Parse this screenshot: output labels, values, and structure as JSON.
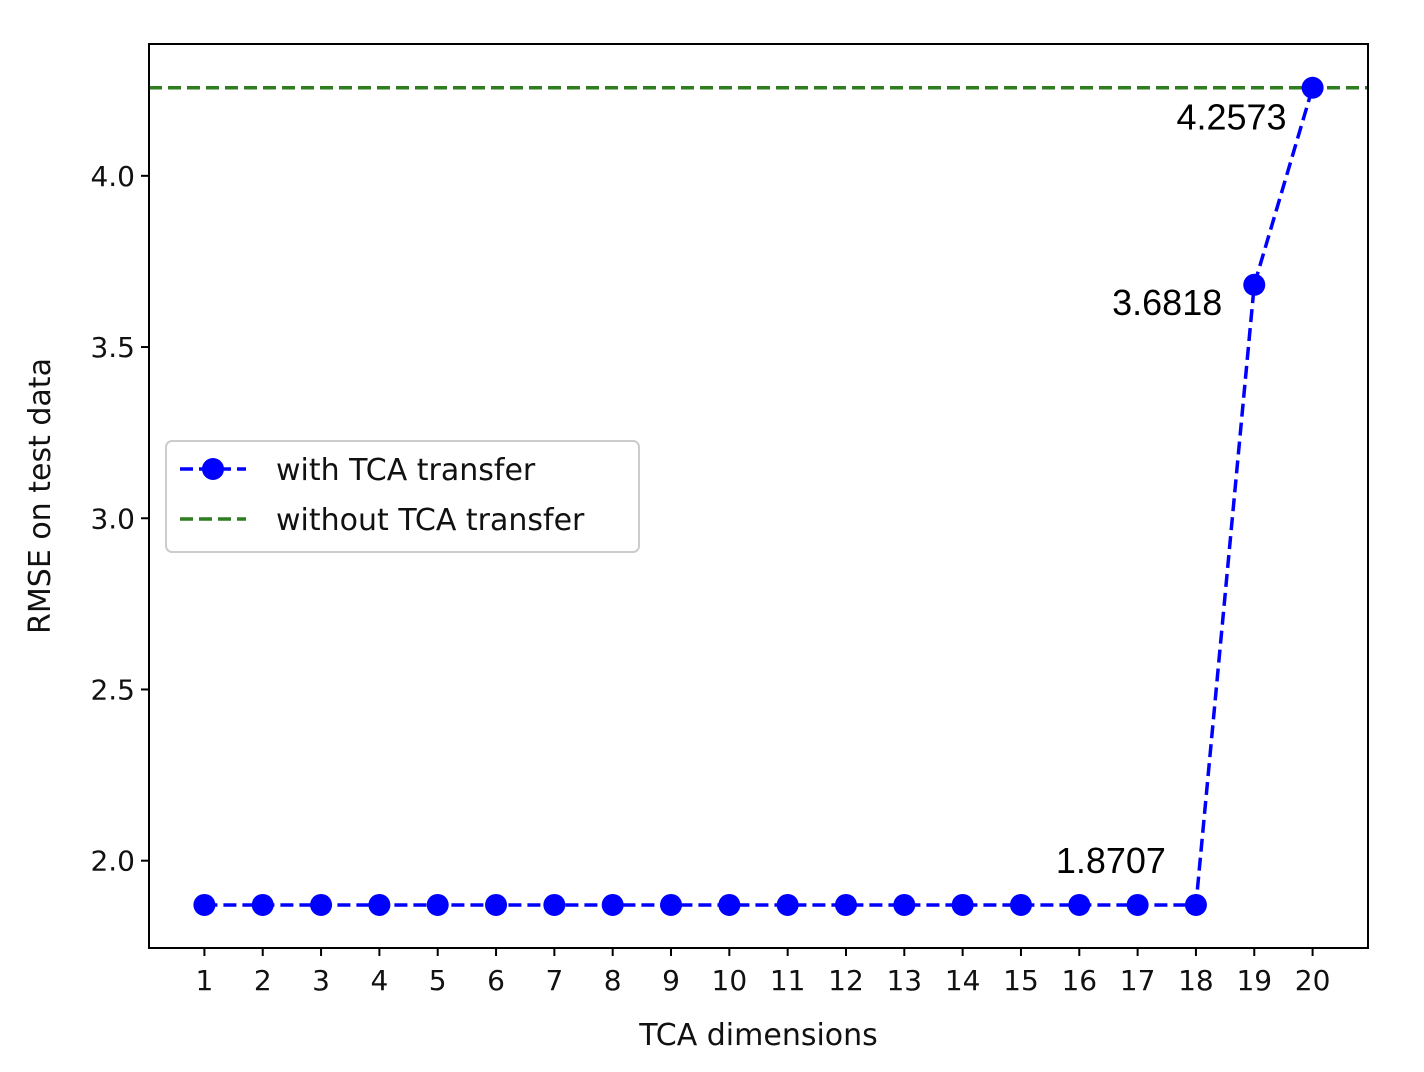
{
  "chart_data": {
    "type": "line",
    "xlabel": "TCA dimensions",
    "ylabel": "RMSE on test data",
    "xlim": [
      0.05,
      20.95
    ],
    "ylim": [
      1.745,
      4.385
    ],
    "x": [
      1,
      2,
      3,
      4,
      5,
      6,
      7,
      8,
      9,
      10,
      11,
      12,
      13,
      14,
      15,
      16,
      17,
      18,
      19,
      20
    ],
    "x_tick_labels": [
      "1",
      "2",
      "3",
      "4",
      "5",
      "6",
      "7",
      "8",
      "9",
      "10",
      "11",
      "12",
      "13",
      "14",
      "15",
      "16",
      "17",
      "18",
      "19",
      "20"
    ],
    "y_ticks": [
      2.0,
      2.5,
      3.0,
      3.5,
      4.0
    ],
    "y_tick_labels": [
      "2.0",
      "2.5",
      "3.0",
      "3.5",
      "4.0"
    ],
    "series": [
      {
        "name": "with TCA transfer",
        "style": "dashed line with circle markers",
        "color": "#0000ff",
        "values": [
          1.8707,
          1.8707,
          1.8707,
          1.8707,
          1.8707,
          1.8707,
          1.8707,
          1.8707,
          1.8707,
          1.8707,
          1.8707,
          1.8707,
          1.8707,
          1.8707,
          1.8707,
          1.8707,
          1.8707,
          1.8707,
          3.6818,
          4.2573
        ]
      },
      {
        "name": "without TCA transfer",
        "style": "dashed horizontal line",
        "color": "#2e7d1e",
        "value": 4.2573
      }
    ],
    "annotations": [
      {
        "text": "1.8707",
        "x": 18,
        "y": 1.8707
      },
      {
        "text": "3.6818",
        "x": 19,
        "y": 3.6818
      },
      {
        "text": "4.2573",
        "x": 20,
        "y": 4.2573
      }
    ],
    "legend": {
      "placement": "center-left",
      "entries": [
        "with TCA transfer",
        "without TCA transfer"
      ]
    },
    "grid": false
  }
}
